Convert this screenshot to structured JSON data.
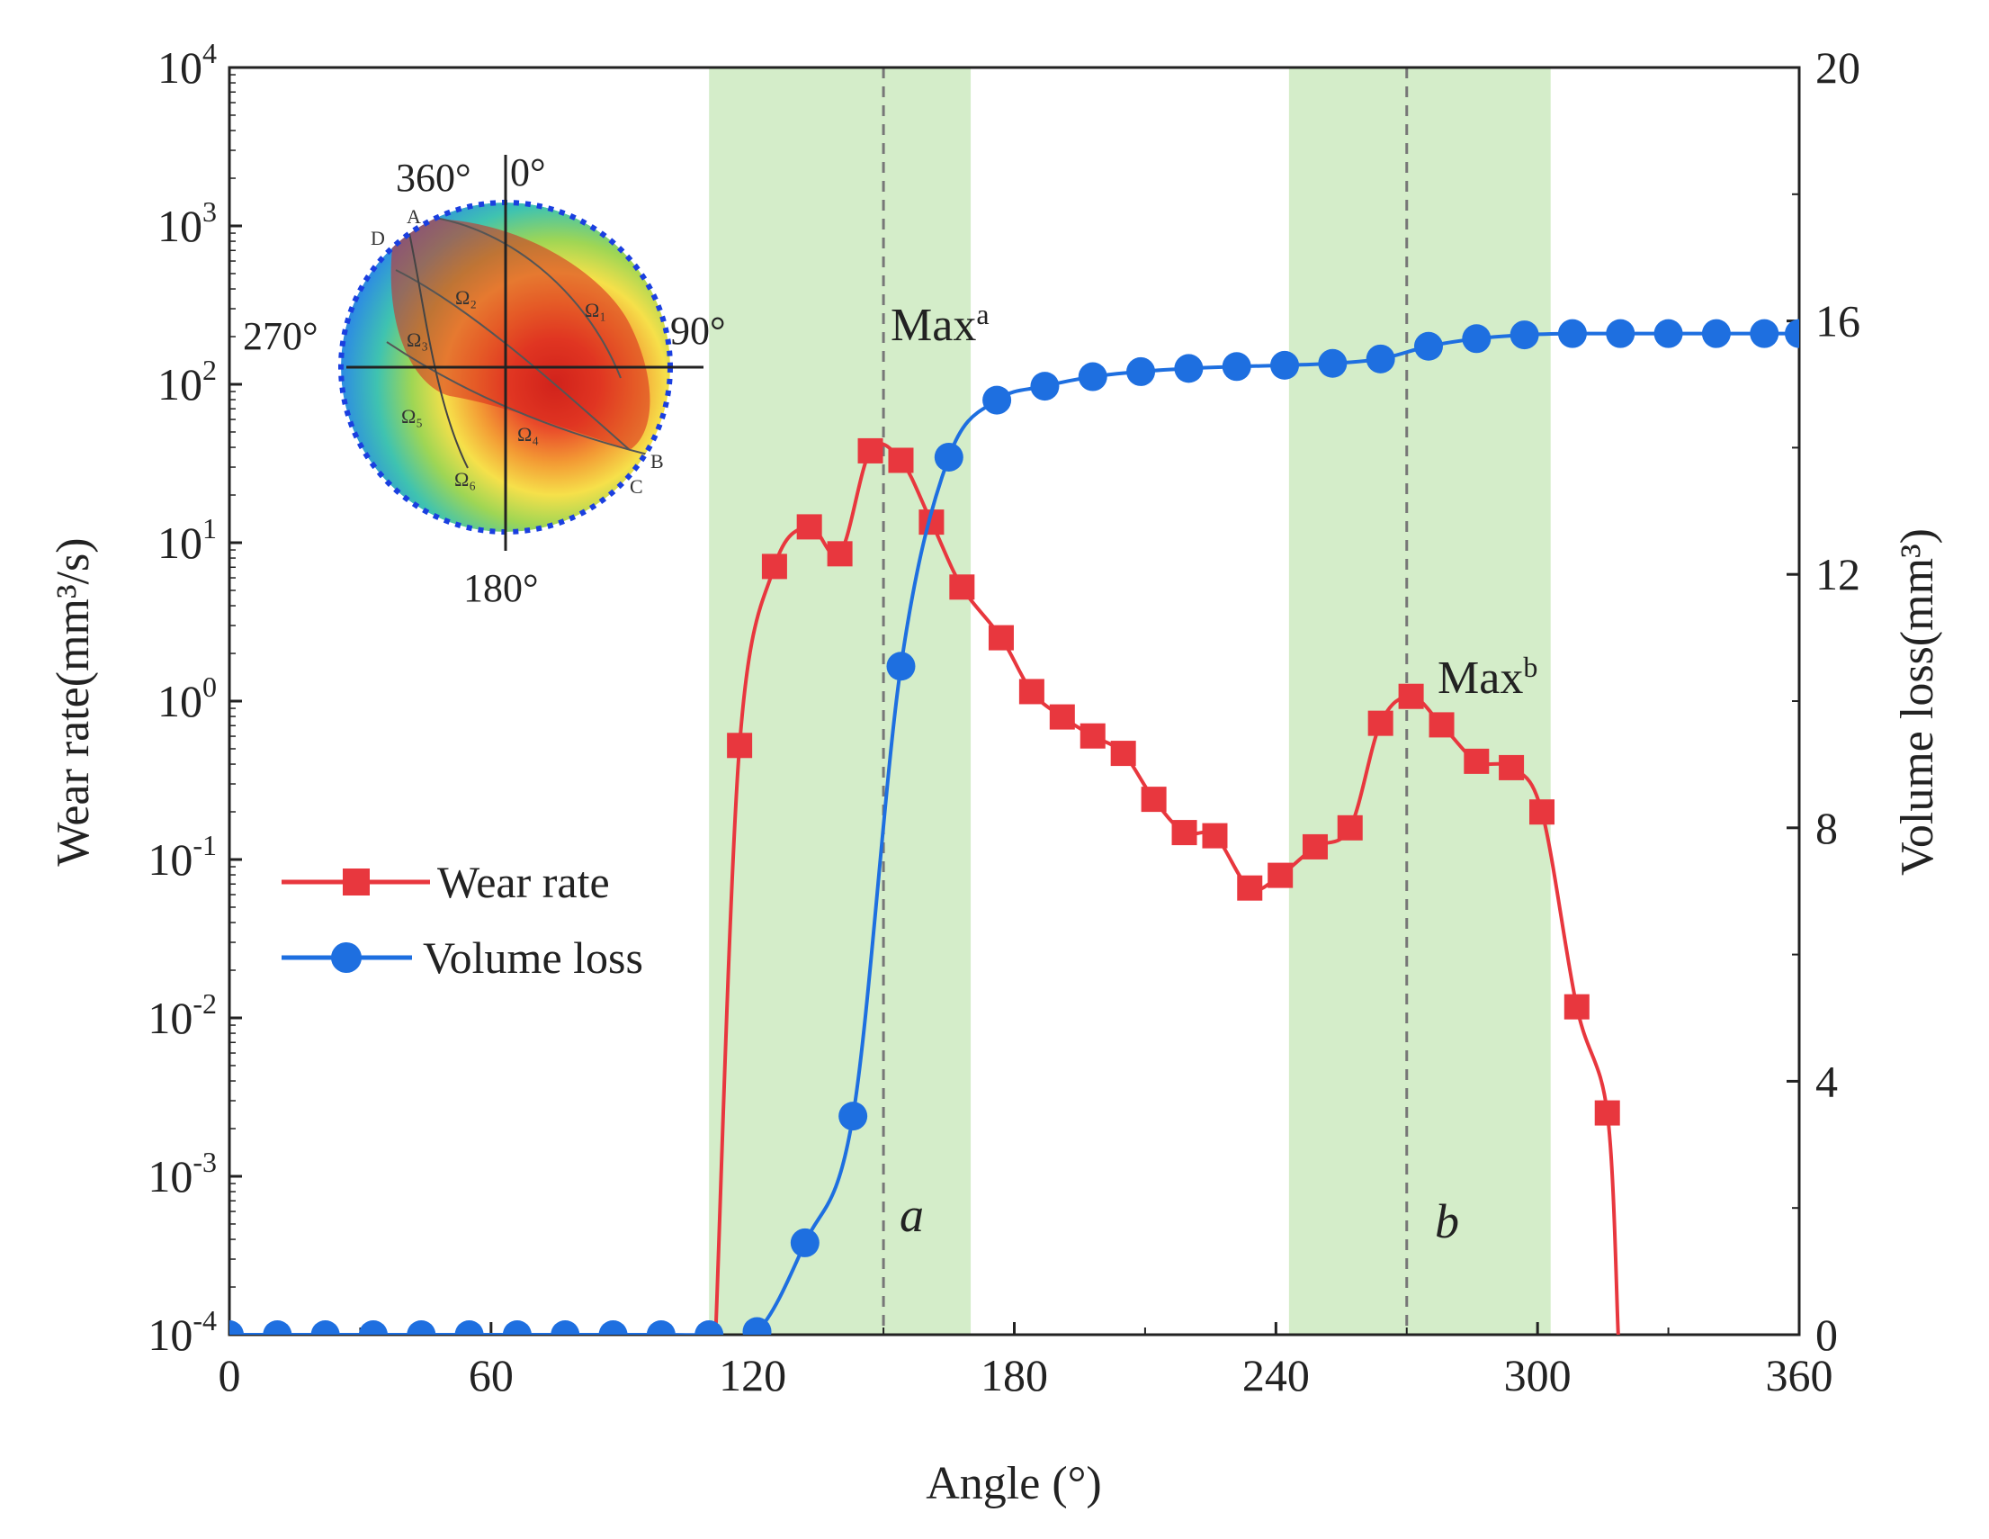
{
  "chart_data": {
    "type": "line",
    "title": "",
    "xlabel": "Angle (°)",
    "ylabel_left": "Wear rate(mm³/s)",
    "ylabel_right": "Volume loss(mm³)",
    "xlim": [
      0,
      360
    ],
    "ylim_left_log10": [
      -4,
      4
    ],
    "ylim_right": [
      0,
      20
    ],
    "x_ticks": [
      0,
      60,
      120,
      180,
      240,
      300,
      360
    ],
    "x_tick_labels": [
      "0",
      "60",
      "120",
      "180",
      "240",
      "300",
      "360"
    ],
    "y_left_ticks": [
      {
        "base": "10",
        "exp": "4",
        "value": 4
      },
      {
        "base": "10",
        "exp": "3",
        "value": 3
      },
      {
        "base": "10",
        "exp": "2",
        "value": 2
      },
      {
        "base": "10",
        "exp": "1",
        "value": 1
      },
      {
        "base": "10",
        "exp": "0",
        "value": 0
      },
      {
        "base": "10",
        "exp": "-1",
        "value": -1
      },
      {
        "base": "10",
        "exp": "-2",
        "value": -2
      },
      {
        "base": "10",
        "exp": "-3",
        "value": -3
      },
      {
        "base": "10",
        "exp": "-4",
        "value": -4
      }
    ],
    "y_right_ticks": [
      0,
      4,
      8,
      12,
      16,
      20
    ],
    "y_right_tick_labels": [
      "0",
      "4",
      "8",
      "12",
      "16",
      "20"
    ],
    "shaded_regions": [
      {
        "x0": 110,
        "x1": 170,
        "color": "#d4edc9"
      },
      {
        "x0": 243,
        "x1": 303,
        "color": "#d4edc9"
      }
    ],
    "vlines": [
      {
        "x": 150,
        "label": "a"
      },
      {
        "x": 270,
        "label": "b"
      }
    ],
    "series": [
      {
        "name": "Wear rate",
        "axis": "left",
        "color": "#e8373e",
        "marker": "square",
        "points_log10": [
          [
            111.5,
            -4.0
          ],
          [
            117,
            -0.28
          ],
          [
            125,
            0.85
          ],
          [
            133,
            1.1
          ],
          [
            140,
            0.93
          ],
          [
            147,
            1.58
          ],
          [
            154,
            1.52
          ],
          [
            161,
            1.13
          ],
          [
            168,
            0.72
          ],
          [
            177,
            0.4
          ],
          [
            184,
            0.06
          ],
          [
            191,
            -0.1
          ],
          [
            198,
            -0.22
          ],
          [
            205,
            -0.33
          ],
          [
            212,
            -0.62
          ],
          [
            219,
            -0.83
          ],
          [
            226,
            -0.85
          ],
          [
            234,
            -1.18
          ],
          [
            241,
            -1.1
          ],
          [
            249,
            -0.92
          ],
          [
            257,
            -0.8
          ],
          [
            264,
            -0.14
          ],
          [
            271,
            0.03
          ],
          [
            278,
            -0.15
          ],
          [
            286,
            -0.38
          ],
          [
            294,
            -0.42
          ],
          [
            301,
            -0.7
          ],
          [
            309,
            -1.93
          ],
          [
            316,
            -2.6
          ],
          [
            318.5,
            -4.0
          ]
        ]
      },
      {
        "name": "Volume loss",
        "axis": "right",
        "color": "#1e6fe0",
        "marker": "circle",
        "points": [
          [
            0,
            0
          ],
          [
            11,
            0
          ],
          [
            22,
            0
          ],
          [
            33,
            0
          ],
          [
            44,
            0
          ],
          [
            55,
            0
          ],
          [
            66,
            0
          ],
          [
            77,
            0
          ],
          [
            88,
            0
          ],
          [
            99,
            0
          ],
          [
            110,
            0
          ],
          [
            121,
            0.05
          ],
          [
            132,
            1.45
          ],
          [
            143,
            3.45
          ],
          [
            154,
            10.55
          ],
          [
            165,
            13.85
          ],
          [
            176,
            14.75
          ],
          [
            187,
            14.97
          ],
          [
            198,
            15.12
          ],
          [
            209,
            15.2
          ],
          [
            220,
            15.25
          ],
          [
            231,
            15.28
          ],
          [
            242,
            15.3
          ],
          [
            253,
            15.33
          ],
          [
            264,
            15.4
          ],
          [
            275,
            15.6
          ],
          [
            286,
            15.72
          ],
          [
            297,
            15.78
          ],
          [
            308,
            15.8
          ],
          [
            319,
            15.8
          ],
          [
            330,
            15.8
          ],
          [
            341,
            15.8
          ],
          [
            352,
            15.8
          ],
          [
            360,
            15.8
          ]
        ]
      }
    ],
    "annotations": [
      {
        "text": "Max",
        "sup": "a"
      },
      {
        "text": "Max",
        "sup": "b"
      }
    ],
    "legend_position": "center-left",
    "inset": {
      "description_labels": [
        "360°",
        "0°",
        "90°",
        "270°",
        "180°"
      ],
      "region_labels": [
        "Ω₁",
        "Ω₂",
        "Ω₃",
        "Ω₄",
        "Ω₅",
        "Ω₆"
      ],
      "point_labels": [
        "A",
        "B",
        "C",
        "D"
      ]
    }
  }
}
